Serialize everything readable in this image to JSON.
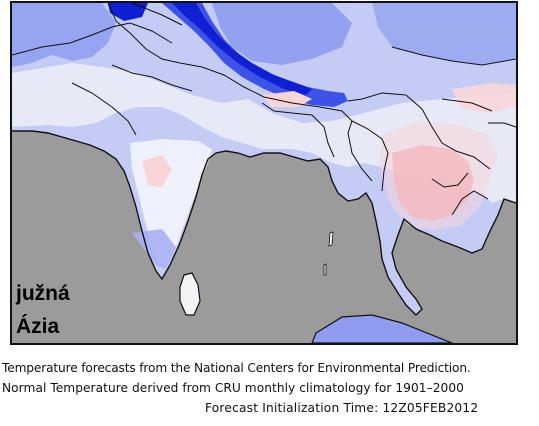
{
  "map": {
    "region_label_line1": "južná",
    "region_label_line2": "Ázia",
    "colors": {
      "ocean": "#9b9b9b",
      "land_near_normal": "#f3f3f7",
      "cold_light": "#c4ccf6",
      "cold_medium": "#8f9cf0",
      "cold_strong": "#3d52e6",
      "cold_extreme": "#0e1fd4",
      "warm_light": "#f8d6d8",
      "warm_medium": "#ef9aa0",
      "borders": "#111111"
    }
  },
  "caption": {
    "line1": "Temperature  forecasts from the National Centers for  Environmental  Prediction.",
    "line2": "Normal Temperature  derived  from  CRU  monthly  climatology  for  1901–2000",
    "line3": "Forecast  Initialization  Time:  12Z05FEB2012"
  }
}
